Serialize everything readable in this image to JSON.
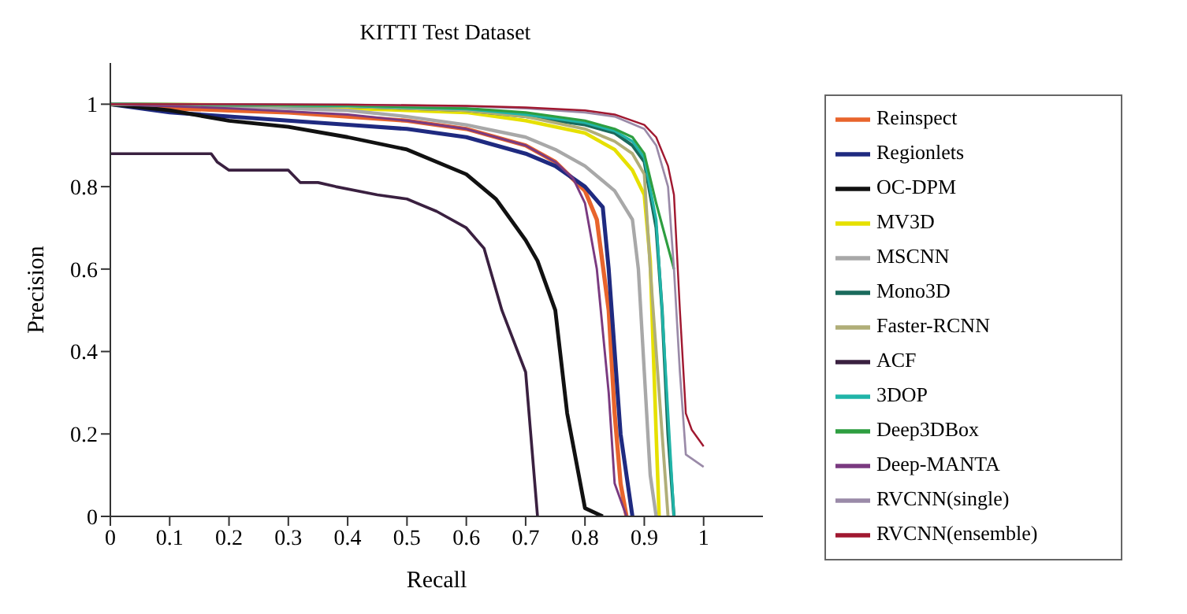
{
  "chart_data": {
    "type": "line",
    "title": "KITTI Test Dataset",
    "xlabel": "Recall",
    "ylabel": "Precision",
    "xlim": [
      0,
      1.1
    ],
    "ylim": [
      0,
      1.1
    ],
    "xticks": [
      0,
      0.1,
      0.2,
      0.3,
      0.4,
      0.5,
      0.6,
      0.7,
      0.8,
      0.9,
      1
    ],
    "yticks": [
      0,
      0.2,
      0.4,
      0.6,
      0.8,
      1
    ],
    "grid": false,
    "legend": "right",
    "marker": "none",
    "line_style": "solid",
    "series": [
      {
        "name": "Reinspect",
        "color": "#e8642c",
        "x": [
          0,
          0.1,
          0.2,
          0.3,
          0.4,
          0.5,
          0.6,
          0.7,
          0.75,
          0.8,
          0.82,
          0.84,
          0.85,
          0.86,
          0.87
        ],
        "values": [
          1,
          0.99,
          0.985,
          0.98,
          0.97,
          0.96,
          0.94,
          0.9,
          0.86,
          0.79,
          0.72,
          0.5,
          0.25,
          0.08,
          0
        ]
      },
      {
        "name": "Regionlets",
        "color": "#1f2a80",
        "x": [
          0,
          0.1,
          0.2,
          0.3,
          0.4,
          0.5,
          0.6,
          0.7,
          0.75,
          0.8,
          0.83,
          0.84,
          0.85,
          0.86,
          0.88
        ],
        "values": [
          1,
          0.98,
          0.97,
          0.96,
          0.95,
          0.94,
          0.92,
          0.88,
          0.85,
          0.8,
          0.75,
          0.6,
          0.4,
          0.2,
          0
        ]
      },
      {
        "name": "OC-DPM",
        "color": "#111111",
        "x": [
          0,
          0.1,
          0.2,
          0.3,
          0.4,
          0.5,
          0.6,
          0.65,
          0.7,
          0.72,
          0.75,
          0.77,
          0.8,
          0.83
        ],
        "values": [
          1,
          0.985,
          0.96,
          0.945,
          0.92,
          0.89,
          0.83,
          0.77,
          0.67,
          0.62,
          0.5,
          0.25,
          0.02,
          0
        ]
      },
      {
        "name": "MV3D",
        "color": "#e6e000",
        "x": [
          0,
          0.2,
          0.4,
          0.6,
          0.7,
          0.8,
          0.85,
          0.88,
          0.9,
          0.91,
          0.92,
          0.925
        ],
        "values": [
          1,
          0.998,
          0.99,
          0.98,
          0.96,
          0.93,
          0.89,
          0.84,
          0.78,
          0.62,
          0.2,
          0
        ]
      },
      {
        "name": "MSCNN",
        "color": "#a8a8a8",
        "x": [
          0,
          0.2,
          0.4,
          0.5,
          0.6,
          0.7,
          0.75,
          0.8,
          0.85,
          0.88,
          0.89,
          0.9,
          0.91,
          0.92
        ],
        "values": [
          1,
          0.995,
          0.985,
          0.97,
          0.95,
          0.92,
          0.89,
          0.85,
          0.79,
          0.72,
          0.6,
          0.35,
          0.1,
          0
        ]
      },
      {
        "name": "Mono3D",
        "color": "#1a6a5c",
        "x": [
          0,
          0.2,
          0.4,
          0.6,
          0.7,
          0.8,
          0.85,
          0.88,
          0.9,
          0.92,
          0.93,
          0.94,
          0.95
        ],
        "values": [
          1,
          0.998,
          0.995,
          0.985,
          0.97,
          0.95,
          0.93,
          0.9,
          0.86,
          0.7,
          0.5,
          0.2,
          0
        ]
      },
      {
        "name": "Faster-RCNN",
        "color": "#b0ae78",
        "x": [
          0,
          0.2,
          0.4,
          0.6,
          0.7,
          0.8,
          0.85,
          0.88,
          0.9,
          0.91,
          0.93,
          0.94
        ],
        "values": [
          1,
          0.998,
          0.995,
          0.985,
          0.97,
          0.94,
          0.91,
          0.88,
          0.83,
          0.6,
          0.2,
          0
        ]
      },
      {
        "name": "ACF",
        "color": "#3a2040",
        "x": [
          0,
          0.1,
          0.17,
          0.18,
          0.2,
          0.3,
          0.32,
          0.35,
          0.38,
          0.45,
          0.5,
          0.55,
          0.6,
          0.63,
          0.66,
          0.7,
          0.72
        ],
        "values": [
          0.88,
          0.88,
          0.88,
          0.86,
          0.84,
          0.84,
          0.81,
          0.81,
          0.8,
          0.78,
          0.77,
          0.74,
          0.7,
          0.65,
          0.5,
          0.35,
          0
        ]
      },
      {
        "name": "3DOP",
        "color": "#20b4a8",
        "x": [
          0,
          0.2,
          0.4,
          0.6,
          0.7,
          0.8,
          0.85,
          0.88,
          0.9,
          0.92,
          0.93,
          0.94,
          0.95
        ],
        "values": [
          1,
          0.999,
          0.996,
          0.988,
          0.975,
          0.955,
          0.935,
          0.91,
          0.87,
          0.72,
          0.5,
          0.25,
          0
        ]
      },
      {
        "name": "Deep3DBox",
        "color": "#2e9e40",
        "x": [
          0,
          0.2,
          0.4,
          0.6,
          0.7,
          0.8,
          0.85,
          0.88,
          0.9,
          0.92,
          0.95
        ],
        "values": [
          1,
          0.999,
          0.997,
          0.99,
          0.98,
          0.96,
          0.94,
          0.92,
          0.88,
          0.76,
          0.6
        ]
      },
      {
        "name": "Deep-MANTA",
        "color": "#7a3a80",
        "x": [
          0,
          0.2,
          0.4,
          0.5,
          0.6,
          0.7,
          0.75,
          0.78,
          0.8,
          0.82,
          0.84,
          0.85,
          0.87
        ],
        "values": [
          1,
          0.99,
          0.975,
          0.96,
          0.94,
          0.9,
          0.86,
          0.82,
          0.76,
          0.6,
          0.3,
          0.08,
          0
        ]
      },
      {
        "name": "RVCNN(single)",
        "color": "#9a8aa8",
        "x": [
          0,
          0.2,
          0.4,
          0.6,
          0.7,
          0.8,
          0.85,
          0.9,
          0.92,
          0.94,
          0.95,
          0.96,
          0.97,
          1
        ],
        "values": [
          1,
          1,
          0.999,
          0.995,
          0.99,
          0.98,
          0.97,
          0.94,
          0.9,
          0.8,
          0.6,
          0.35,
          0.15,
          0.12
        ]
      },
      {
        "name": "RVCNN(ensemble)",
        "color": "#a01830",
        "x": [
          0,
          0.2,
          0.4,
          0.6,
          0.7,
          0.8,
          0.85,
          0.9,
          0.92,
          0.94,
          0.95,
          0.96,
          0.97,
          0.98,
          1
        ],
        "values": [
          1,
          1,
          0.999,
          0.996,
          0.992,
          0.985,
          0.975,
          0.95,
          0.92,
          0.85,
          0.78,
          0.5,
          0.25,
          0.21,
          0.17
        ]
      }
    ]
  }
}
